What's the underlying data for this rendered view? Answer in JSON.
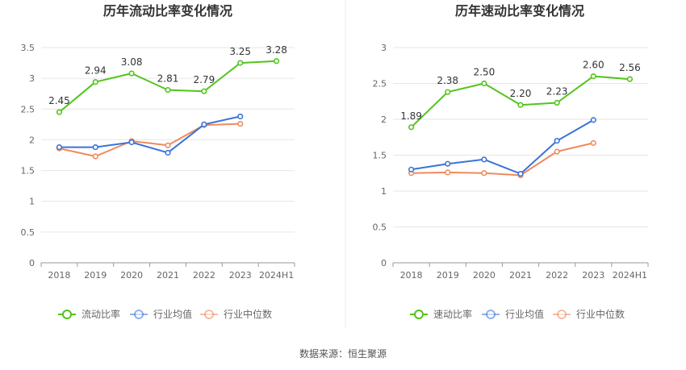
{
  "chart_data": [
    {
      "type": "line",
      "title": "历年流动比率变化情况",
      "categories": [
        "2018",
        "2019",
        "2020",
        "2021",
        "2022",
        "2023",
        "2024H1"
      ],
      "ylim": [
        0,
        3.5
      ],
      "yticks": [
        0,
        0.5,
        1,
        1.5,
        2,
        2.5,
        3,
        3.5
      ],
      "ytick_labels": [
        "0",
        "0.5",
        "1",
        "1.5",
        "2",
        "2.5",
        "3",
        "3.5"
      ],
      "series": [
        {
          "name": "流动比率",
          "color": "#52c41a",
          "values": [
            2.45,
            2.94,
            3.08,
            2.81,
            2.79,
            3.25,
            3.28
          ],
          "labels": [
            "2.45",
            "2.94",
            "3.08",
            "2.81",
            "2.79",
            "3.25",
            "3.28"
          ]
        },
        {
          "name": "行业均值",
          "color": "#3b73d9",
          "values": [
            1.88,
            1.88,
            1.96,
            1.79,
            2.25,
            2.38,
            null
          ]
        },
        {
          "name": "行业中位数",
          "color": "#f08a5d",
          "values": [
            1.86,
            1.73,
            1.98,
            1.91,
            2.24,
            2.26,
            null
          ]
        }
      ]
    },
    {
      "type": "line",
      "title": "历年速动比率变化情况",
      "categories": [
        "2018",
        "2019",
        "2020",
        "2021",
        "2022",
        "2023",
        "2024H1"
      ],
      "ylim": [
        0,
        3
      ],
      "yticks": [
        0,
        0.5,
        1,
        1.5,
        2,
        2.5,
        3
      ],
      "ytick_labels": [
        "0",
        "0.5",
        "1",
        "1.5",
        "2",
        "2.5",
        "3"
      ],
      "series": [
        {
          "name": "速动比率",
          "color": "#52c41a",
          "values": [
            1.89,
            2.38,
            2.5,
            2.2,
            2.23,
            2.6,
            2.56
          ],
          "labels": [
            "1.89",
            "2.38",
            "2.50",
            "2.20",
            "2.23",
            "2.60",
            "2.56"
          ]
        },
        {
          "name": "行业均值",
          "color": "#3b73d9",
          "values": [
            1.3,
            1.38,
            1.44,
            1.24,
            1.7,
            1.99,
            null
          ]
        },
        {
          "name": "行业中位数",
          "color": "#f08a5d",
          "values": [
            1.25,
            1.26,
            1.25,
            1.22,
            1.55,
            1.67,
            null
          ]
        }
      ]
    }
  ],
  "footer": {
    "source": "数据来源：恒生聚源"
  }
}
